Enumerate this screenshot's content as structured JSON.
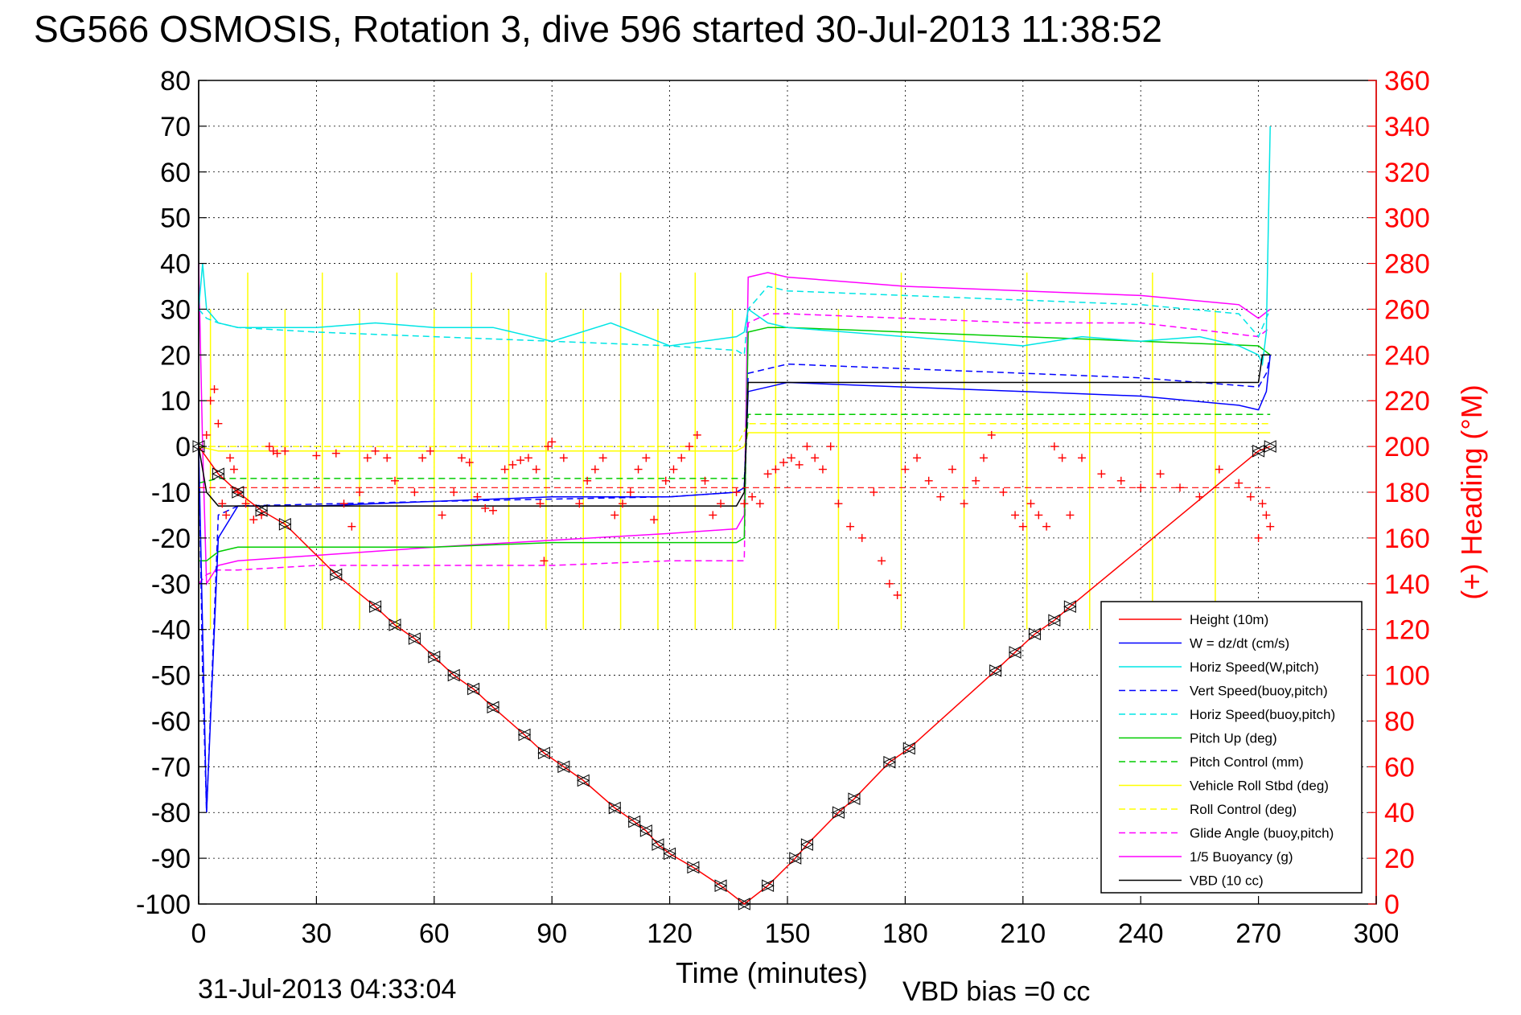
{
  "title": "SG566 OSMOSIS, Rotation 3, dive 596 started 30-Jul-2013 11:38:52",
  "footer_left": "31-Jul-2013 04:33:04",
  "footer_right": "VBD bias =0 cc",
  "colors": {
    "height": "#ff0000",
    "w": "#0000ff",
    "horiz_speed_w": "#00e5e5",
    "vert_speed_buoy": "#0000ff",
    "horiz_speed_buoy": "#00e5e5",
    "pitch_up": "#00cc00",
    "pitch_control": "#00cc00",
    "roll_stbd": "#ffff00",
    "roll_control": "#ffff00",
    "glide_angle": "#ff00ff",
    "buoyancy": "#ff00ff",
    "vbd": "#000000",
    "heading": "#ff0000"
  },
  "chart_data": {
    "type": "line",
    "title": "SG566 OSMOSIS, Rotation 3, dive 596 started 30-Jul-2013 11:38:52",
    "xlabel": "Time (minutes)",
    "ylabel": "",
    "ylabel_right": "(+) Heading (°M)",
    "xlim": [
      0,
      300
    ],
    "ylim": [
      -100,
      80
    ],
    "ylim_right": [
      0,
      360
    ],
    "xticks": [
      "0",
      "30",
      "60",
      "90",
      "120",
      "150",
      "180",
      "210",
      "240",
      "270",
      "300"
    ],
    "yticks_left": [
      "80",
      "70",
      "60",
      "50",
      "40",
      "30",
      "20",
      "10",
      "0",
      "-10",
      "-20",
      "-30",
      "-40",
      "-50",
      "-60",
      "-70",
      "-80",
      "-90",
      "-100"
    ],
    "yticks_right": [
      "360",
      "340",
      "320",
      "300",
      "280",
      "260",
      "240",
      "220",
      "200",
      "180",
      "160",
      "140",
      "120",
      "100",
      "80",
      "60",
      "40",
      "20",
      "0"
    ],
    "grid": true,
    "legend_position": "bottom-right",
    "series": [
      {
        "name": "Height (10m)",
        "color_key": "height",
        "dash": "solid",
        "marker": "triangle",
        "x": [
          0,
          5,
          10,
          16,
          22,
          35,
          45,
          50,
          55,
          60,
          65,
          70,
          75,
          83,
          88,
          93,
          98,
          106,
          111,
          114,
          117,
          120,
          126,
          133,
          139,
          145,
          152,
          155,
          163,
          167,
          176,
          181,
          203,
          208,
          213,
          218,
          222,
          270,
          273
        ],
        "y": [
          0,
          -6,
          -10,
          -14,
          -17,
          -28,
          -35,
          -39,
          -42,
          -46,
          -50,
          -53,
          -57,
          -63,
          -67,
          -70,
          -73,
          -79,
          -82,
          -84,
          -87,
          -89,
          -92,
          -96,
          -100,
          -96,
          -90,
          -87,
          -80,
          -77,
          -69,
          -66,
          -49,
          -45,
          -41,
          -38,
          -35,
          -1,
          0
        ]
      },
      {
        "name": "W = dz/dt (cm/s)",
        "color_key": "w",
        "dash": "solid",
        "x": [
          0,
          1,
          2,
          5,
          10,
          30,
          60,
          90,
          120,
          137,
          139,
          140,
          145,
          150,
          180,
          210,
          240,
          265,
          270,
          272,
          273
        ],
        "y": [
          0,
          -40,
          -80,
          -20,
          -13,
          -13,
          -12,
          -11,
          -11,
          -10,
          -9,
          12,
          13,
          14,
          13,
          12,
          11,
          9,
          8,
          12,
          20
        ]
      },
      {
        "name": "Horiz Speed(W,pitch)",
        "color_key": "horiz_speed_w",
        "dash": "solid",
        "x": [
          0,
          1,
          2,
          5,
          10,
          30,
          45,
          60,
          75,
          90,
          105,
          120,
          137,
          139,
          140,
          145,
          150,
          165,
          180,
          195,
          210,
          225,
          240,
          255,
          265,
          270,
          271,
          272,
          273
        ],
        "y": [
          30,
          40,
          30,
          27,
          26,
          26,
          27,
          26,
          26,
          23,
          27,
          22,
          24,
          25,
          30,
          27,
          26,
          25,
          24,
          23,
          22,
          24,
          23,
          24,
          22,
          20,
          18,
          25,
          70
        ]
      },
      {
        "name": "Vert Speed(buoy,pitch)",
        "color_key": "vert_speed_buoy",
        "dash": "dashed",
        "x": [
          0,
          1,
          2,
          5,
          10,
          60,
          120,
          137,
          139,
          140,
          145,
          150,
          180,
          210,
          240,
          270,
          272,
          273
        ],
        "y": [
          0,
          -50,
          -80,
          -15,
          -13,
          -12,
          -11,
          -10,
          -9,
          16,
          17,
          18,
          17,
          16,
          15,
          13,
          16,
          20
        ]
      },
      {
        "name": "Horiz Speed(buoy,pitch)",
        "color_key": "horiz_speed_buoy",
        "dash": "dashed",
        "x": [
          0,
          2,
          5,
          10,
          30,
          60,
          90,
          120,
          137,
          139,
          140,
          145,
          150,
          180,
          210,
          240,
          265,
          270,
          273
        ],
        "y": [
          30,
          28,
          27,
          26,
          25,
          24,
          23,
          22,
          21,
          20,
          30,
          35,
          34,
          33,
          32,
          31,
          29,
          24,
          30
        ]
      },
      {
        "name": "Pitch Up (deg)",
        "color_key": "pitch_up",
        "dash": "solid",
        "x": [
          0,
          2,
          5,
          10,
          30,
          60,
          90,
          120,
          137,
          139,
          140,
          145,
          150,
          180,
          210,
          240,
          270,
          273
        ],
        "y": [
          -25,
          -25,
          -23,
          -22,
          -22,
          -22,
          -21,
          -21,
          -21,
          -20,
          25,
          26,
          26,
          25,
          24,
          23,
          22,
          20
        ]
      },
      {
        "name": "Pitch Control (mm)",
        "color_key": "pitch_control",
        "dash": "dashed",
        "x": [
          0,
          5,
          10,
          60,
          120,
          137,
          139,
          140,
          145,
          150,
          180,
          210,
          240,
          270,
          273
        ],
        "y": [
          -8,
          -7,
          -7,
          -7,
          -7,
          -7,
          -7,
          7,
          7,
          7,
          7,
          7,
          7,
          7,
          7
        ]
      },
      {
        "name": "Vehicle Roll Stbd (deg)",
        "color_key": "roll_stbd",
        "dash": "solid",
        "x": [
          0,
          5,
          10,
          60,
          120,
          137,
          139,
          140,
          145,
          180,
          210,
          240,
          270,
          273
        ],
        "y": [
          0,
          -1,
          -1,
          -1,
          -1,
          -1,
          0,
          3,
          3,
          3,
          3,
          3,
          3,
          3
        ]
      },
      {
        "name": "Roll Control (deg)",
        "color_key": "roll_control",
        "dash": "dashed",
        "x": [
          0,
          5,
          60,
          120,
          137,
          140,
          145,
          180,
          210,
          240,
          270,
          273
        ],
        "y": [
          0,
          0,
          0,
          0,
          0,
          5,
          5,
          5,
          5,
          5,
          5,
          5
        ]
      },
      {
        "name": "Glide Angle (buoy,pitch)",
        "color_key": "glide_angle",
        "dash": "dashed",
        "x": [
          0,
          2,
          5,
          10,
          30,
          60,
          90,
          120,
          137,
          139,
          140,
          145,
          150,
          180,
          210,
          240,
          270,
          273
        ],
        "y": [
          -30,
          -28,
          -27,
          -27,
          -26,
          -26,
          -26,
          -25,
          -25,
          -25,
          27,
          29,
          29,
          28,
          27,
          27,
          24,
          26
        ]
      },
      {
        "name": "1/5 Buoyancy (g)",
        "color_key": "buoyancy",
        "dash": "solid",
        "x": [
          0,
          1,
          2,
          5,
          10,
          60,
          120,
          137,
          139,
          140,
          145,
          150,
          180,
          210,
          240,
          265,
          270,
          273
        ],
        "y": [
          40,
          0,
          -30,
          -26,
          -25,
          -22,
          -19,
          -18,
          -15,
          37,
          38,
          37,
          35,
          34,
          33,
          31,
          28,
          30
        ]
      },
      {
        "name": "VBD (10 cc)",
        "color_key": "vbd",
        "dash": "solid",
        "x": [
          0,
          1,
          2,
          5,
          10,
          60,
          120,
          137,
          139,
          140,
          145,
          150,
          180,
          210,
          240,
          270,
          271,
          273
        ],
        "y": [
          0,
          -5,
          -10,
          -13,
          -13,
          -13,
          -13,
          -13,
          -10,
          14,
          14,
          14,
          14,
          14,
          14,
          14,
          20,
          20
        ]
      }
    ],
    "heading_series": {
      "name": "(+) Heading",
      "axis": "right",
      "marker": "plus",
      "x": [
        2,
        3,
        4,
        5,
        6,
        7,
        8,
        9,
        10,
        12,
        14,
        16,
        18,
        19,
        20,
        22,
        30,
        35,
        37,
        39,
        41,
        43,
        45,
        48,
        50,
        55,
        57,
        59,
        62,
        65,
        67,
        69,
        71,
        73,
        75,
        78,
        80,
        82,
        84,
        86,
        87,
        88,
        89,
        90,
        93,
        97,
        99,
        101,
        103,
        106,
        108,
        110,
        112,
        114,
        116,
        119,
        121,
        123,
        125,
        127,
        129,
        131,
        133,
        137,
        139,
        141,
        143,
        145,
        147,
        149,
        151,
        153,
        155,
        157,
        159,
        161,
        163,
        166,
        169,
        172,
        174,
        176,
        178,
        180,
        183,
        186,
        189,
        192,
        195,
        198,
        200,
        202,
        205,
        208,
        210,
        212,
        214,
        216,
        218,
        220,
        222,
        225,
        230,
        235,
        240,
        245,
        250,
        255,
        260,
        265,
        268,
        270,
        271,
        272,
        273
      ],
      "y": [
        205,
        220,
        225,
        210,
        175,
        170,
        195,
        190,
        180,
        175,
        168,
        170,
        200,
        198,
        197,
        198,
        196,
        197,
        175,
        165,
        180,
        195,
        198,
        195,
        185,
        180,
        195,
        198,
        170,
        180,
        195,
        193,
        178,
        173,
        172,
        190,
        192,
        194,
        195,
        190,
        175,
        150,
        200,
        202,
        195,
        175,
        185,
        190,
        195,
        170,
        175,
        180,
        190,
        195,
        168,
        185,
        190,
        195,
        200,
        205,
        185,
        170,
        175,
        180,
        175,
        178,
        175,
        188,
        190,
        193,
        195,
        192,
        200,
        195,
        190,
        200,
        175,
        165,
        160,
        180,
        150,
        140,
        135,
        190,
        195,
        185,
        178,
        190,
        175,
        185,
        195,
        205,
        180,
        170,
        165,
        175,
        170,
        165,
        200,
        195,
        170,
        195,
        188,
        185,
        182,
        188,
        182,
        178,
        190,
        184,
        178,
        160,
        175,
        170,
        165
      ]
    }
  }
}
